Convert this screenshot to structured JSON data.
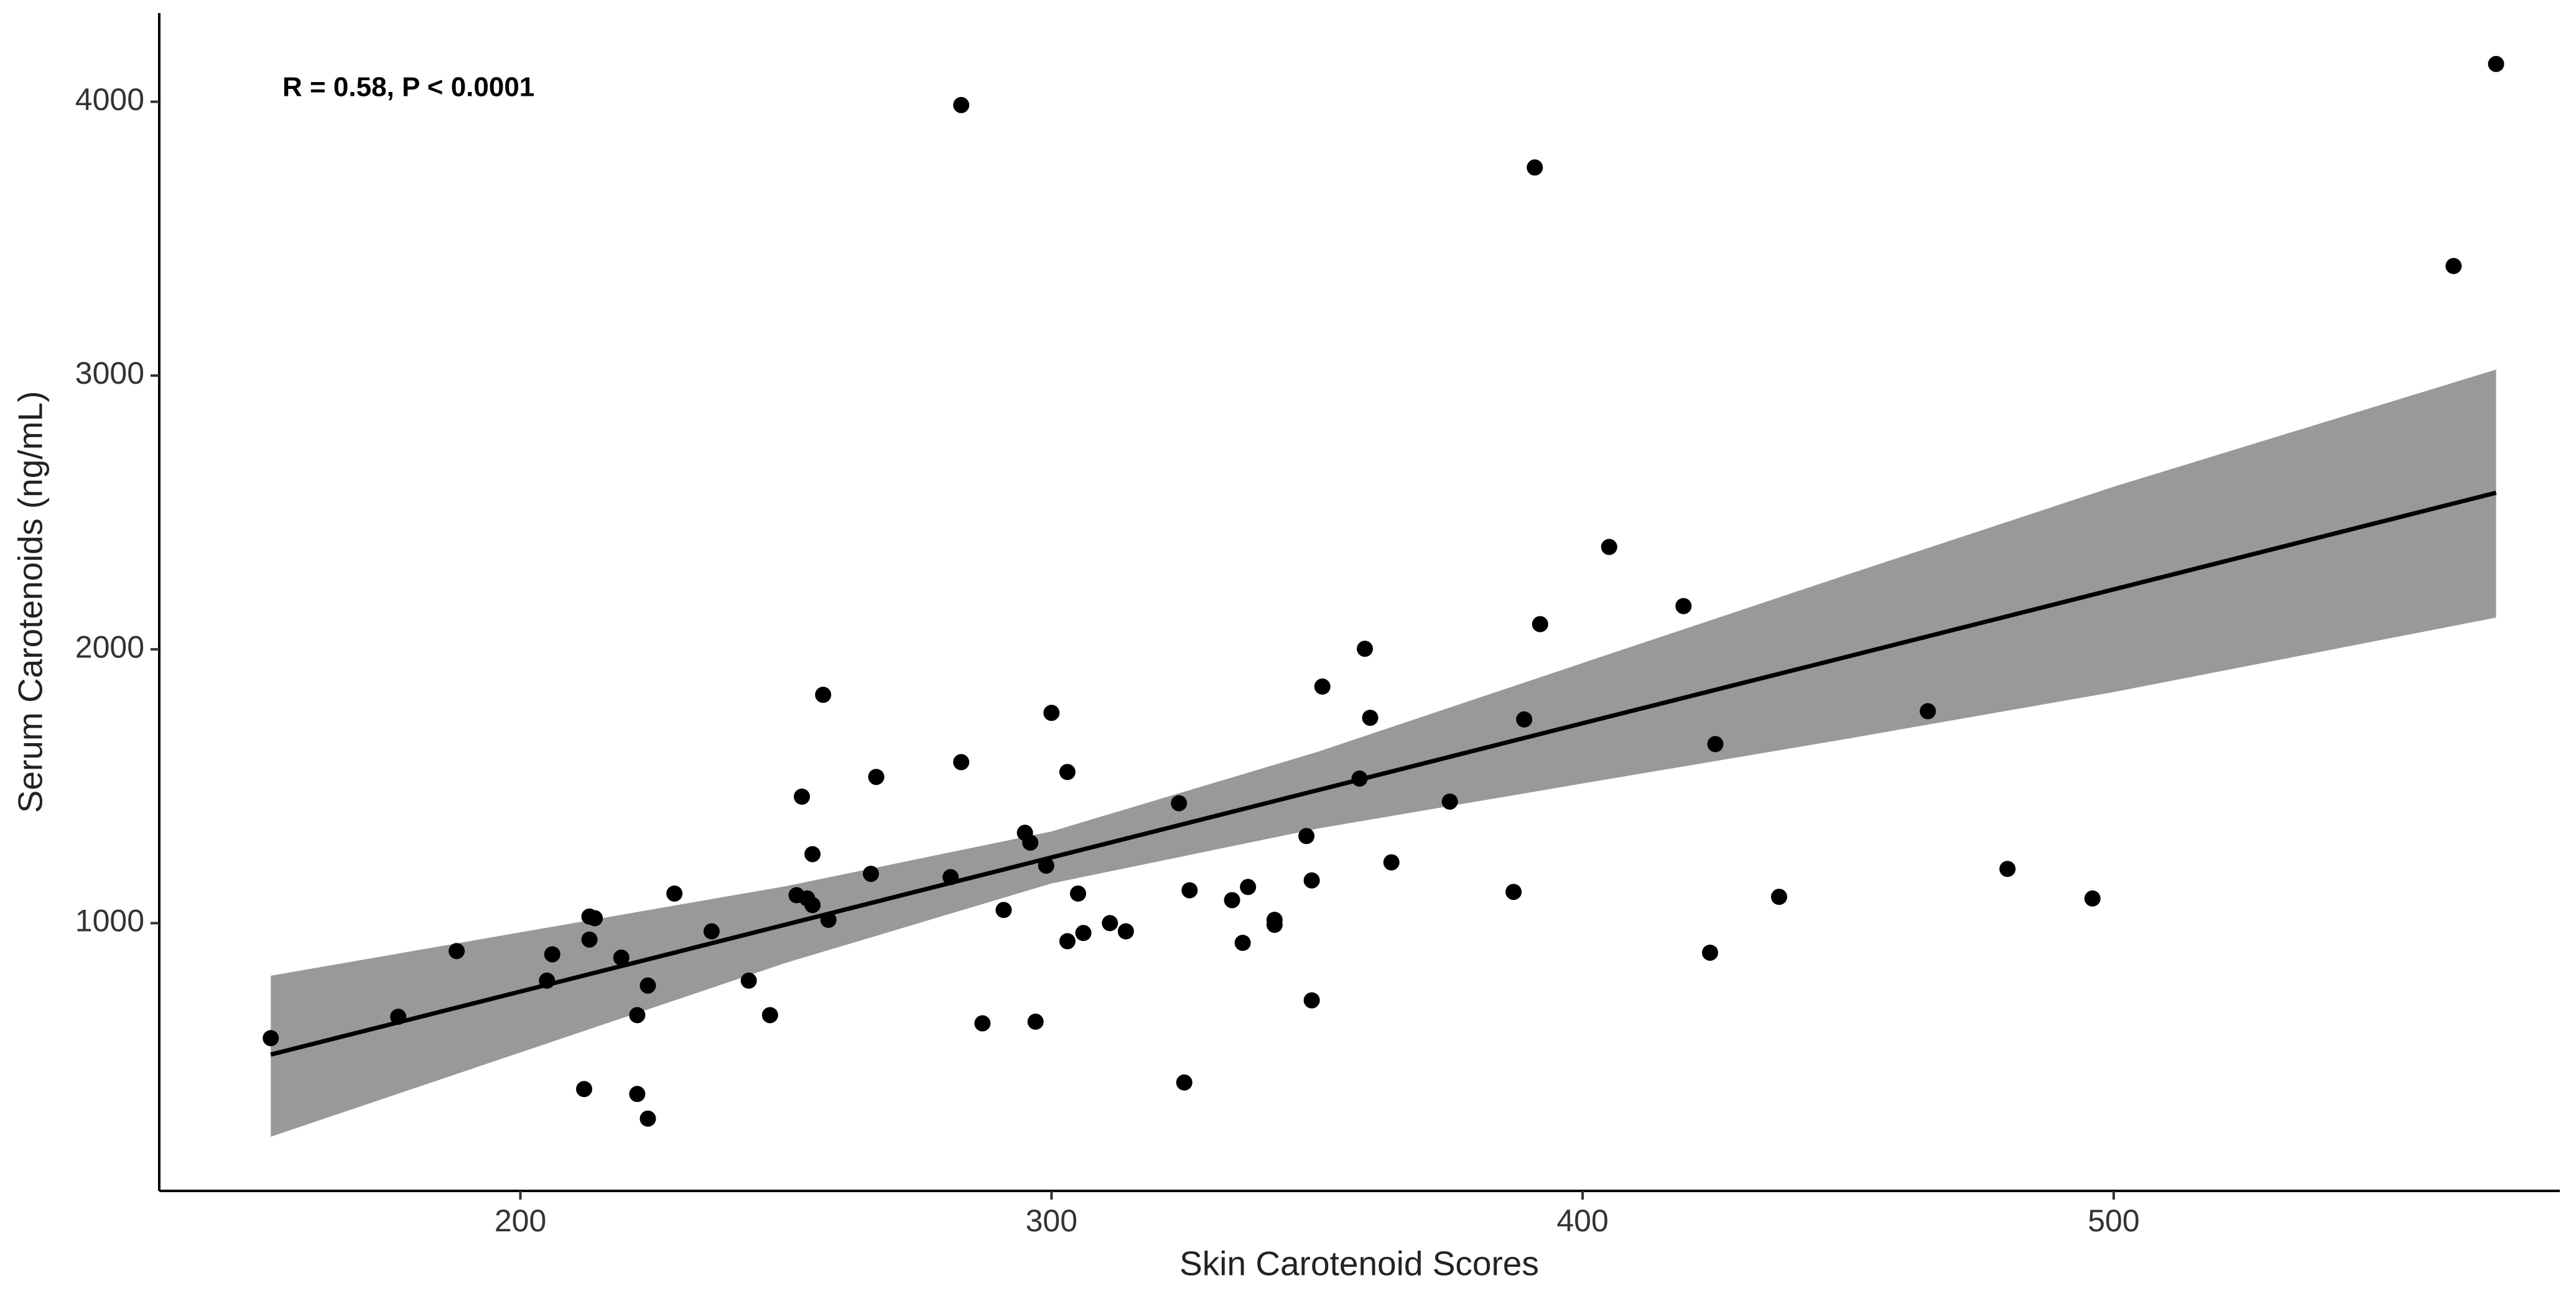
{
  "chart_data": {
    "type": "scatter",
    "annotation": "R = 0.58, P < 0.0001",
    "x_label": "Skin Carotenoid Scores",
    "y_label": "Serum Carotenoids (ng/mL)",
    "xlim": [
      132,
      584
    ],
    "ylim": [
      22,
      4324
    ],
    "xticks": [
      200,
      300,
      400,
      500
    ],
    "yticks": [
      1000,
      2000,
      3000,
      4000
    ],
    "grid": false,
    "color": "#000000",
    "x": [
      153,
      177,
      188,
      205,
      206,
      212,
      213,
      214,
      213,
      219,
      222,
      222,
      224,
      224,
      229,
      236,
      243,
      247,
      253,
      252,
      254,
      255,
      255,
      257,
      258,
      266,
      267,
      281,
      283,
      283,
      287,
      291,
      295,
      296,
      297,
      299,
      300,
      303,
      303,
      305,
      306,
      311,
      314,
      324,
      325,
      326,
      334,
      336,
      337,
      342,
      342,
      348,
      349,
      349,
      351,
      358,
      359,
      360,
      364,
      375,
      387,
      389,
      391,
      392,
      405,
      419,
      424,
      425,
      437,
      465,
      480,
      496,
      564,
      572
    ],
    "y": [
      580,
      658,
      898,
      790,
      886,
      394,
      1024,
      1018,
      940,
      874,
      664,
      376,
      286,
      772,
      1108,
      970,
      790,
      664,
      1462,
      1102,
      1090,
      1252,
      1066,
      1834,
      1012,
      1180,
      1534,
      1168,
      1588,
      3988,
      634,
      1048,
      1330,
      1294,
      640,
      1210,
      1768,
      1552,
      934,
      1108,
      964,
      1000,
      970,
      1438,
      418,
      1120,
      1084,
      928,
      1132,
      1012,
      994,
      1318,
      718,
      1156,
      1864,
      1528,
      2002,
      1750,
      1222,
      1444,
      1114,
      1744,
      3760,
      2092,
      2374,
      2158,
      892,
      1654,
      1096,
      1774,
      1198,
      1090,
      3400,
      4138
    ],
    "fit": {
      "color": "#000000",
      "band_color": "#999999",
      "x": [
        153,
        250,
        300,
        350,
        400,
        450,
        500,
        572
      ],
      "y": [
        520,
        995,
        1240,
        1485,
        1730,
        1974,
        2219,
        2572
      ],
      "lower": [
        220,
        855,
        1145,
        1345,
        1510,
        1674,
        1844,
        2116
      ],
      "upper": [
        808,
        1135,
        1335,
        1625,
        1950,
        2274,
        2594,
        3022
      ]
    }
  }
}
